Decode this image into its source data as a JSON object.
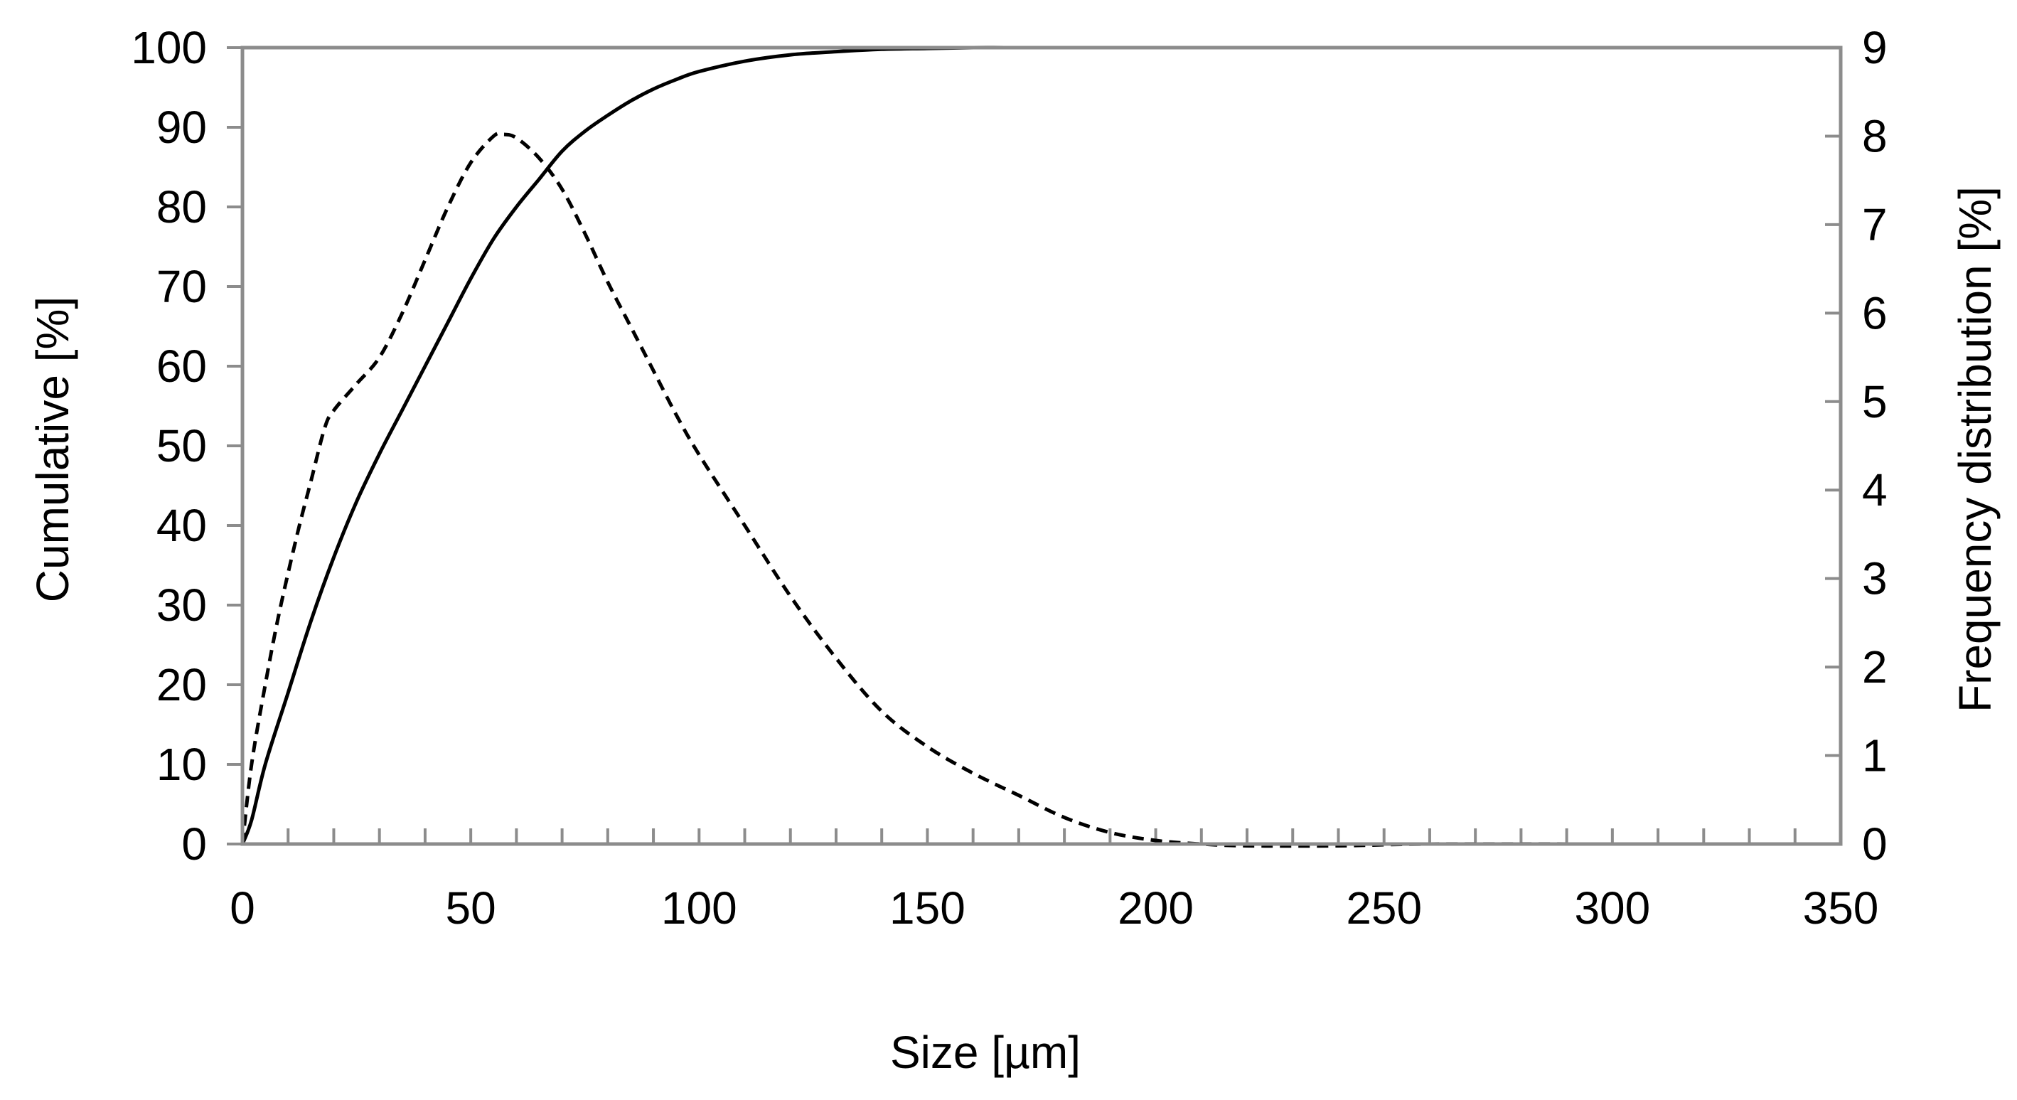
{
  "chart_data": {
    "type": "line",
    "xlabel": "Size [µm]",
    "ylabel": "Cumulative [%]",
    "y2label": "Frequency distribution [%]",
    "xlim": [
      0,
      350
    ],
    "ylim": [
      0,
      100
    ],
    "y2lim": [
      0,
      9
    ],
    "xticks": [
      "0",
      "50",
      "100",
      "150",
      "200",
      "250",
      "300",
      "350"
    ],
    "yticks": [
      "0",
      "10",
      "20",
      "30",
      "40",
      "50",
      "60",
      "70",
      "80",
      "90",
      "100"
    ],
    "y2ticks": [
      "0",
      "1",
      "2",
      "3",
      "4",
      "5",
      "6",
      "7",
      "8",
      "9"
    ],
    "grid": false,
    "series": [
      {
        "axis": "left",
        "line_style": "solid",
        "color": "#000000",
        "x": [
          0,
          2,
          5,
          10,
          15,
          20,
          25,
          30,
          35,
          40,
          45,
          50,
          55,
          60,
          65,
          70,
          75,
          80,
          85,
          90,
          95,
          100,
          110,
          120,
          130,
          140,
          150,
          160,
          170,
          180,
          200,
          250,
          300,
          350
        ],
        "y": [
          0,
          3,
          10,
          19,
          28,
          36,
          43,
          49,
          54.5,
          60,
          65.5,
          71,
          76,
          80,
          83.5,
          87,
          89.5,
          91.5,
          93.3,
          94.8,
          96,
          97,
          98.3,
          99.1,
          99.5,
          99.8,
          99.9,
          100,
          100,
          100,
          100,
          100,
          100,
          100
        ]
      },
      {
        "axis": "right",
        "line_style": "dashed",
        "color": "#000000",
        "x": [
          0,
          2,
          5,
          8,
          12,
          15,
          18,
          20,
          25,
          30,
          35,
          40,
          45,
          50,
          55,
          57,
          60,
          65,
          70,
          75,
          80,
          85,
          90,
          95,
          100,
          110,
          120,
          130,
          140,
          150,
          160,
          170,
          180,
          190,
          200,
          210,
          220,
          240,
          260,
          300,
          350
        ],
        "y": [
          0,
          0.9,
          1.8,
          2.6,
          3.5,
          4.1,
          4.7,
          4.9,
          5.2,
          5.5,
          6.0,
          6.6,
          7.2,
          7.7,
          8.0,
          8.02,
          7.98,
          7.75,
          7.4,
          6.9,
          6.35,
          5.85,
          5.35,
          4.85,
          4.4,
          3.6,
          2.8,
          2.1,
          1.5,
          1.1,
          0.8,
          0.55,
          0.3,
          0.13,
          0.04,
          0.0,
          -0.02,
          -0.02,
          0.0,
          0.0,
          0.0
        ]
      }
    ]
  }
}
